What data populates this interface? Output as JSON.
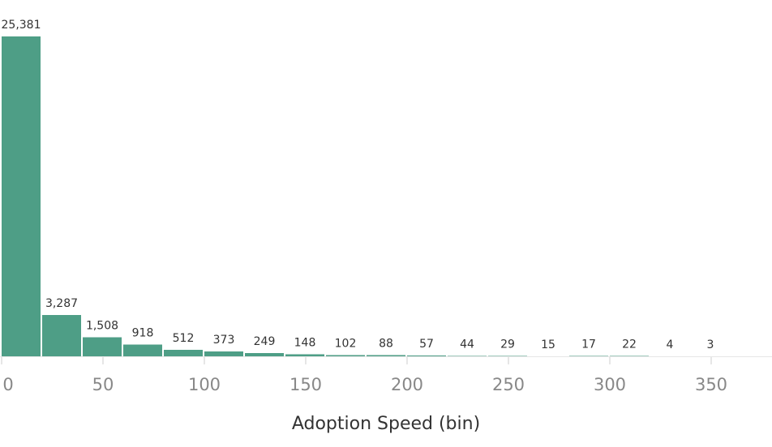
{
  "chart_data": {
    "type": "bar",
    "title": "",
    "xlabel": "Adoption Speed (bin)",
    "ylabel": "",
    "bin_width": 20,
    "x_ticks": [
      0,
      50,
      100,
      150,
      200,
      250,
      300,
      350
    ],
    "x_tick_labels": [
      "0",
      "50",
      "100",
      "150",
      "200",
      "250",
      "300",
      "350"
    ],
    "xlim": [
      0,
      375
    ],
    "ylim": [
      0,
      25381
    ],
    "grid": false,
    "bar_color": "#4e9e86",
    "bins": [
      0,
      20,
      40,
      60,
      80,
      100,
      120,
      140,
      160,
      180,
      200,
      220,
      240,
      260,
      280,
      300,
      320,
      340
    ],
    "values": [
      25381,
      3287,
      1508,
      918,
      512,
      373,
      249,
      148,
      102,
      88,
      57,
      44,
      29,
      15,
      17,
      22,
      4,
      3
    ],
    "value_labels": [
      "25,381",
      "3,287",
      "1,508",
      "918",
      "512",
      "373",
      "249",
      "148",
      "102",
      "88",
      "57",
      "44",
      "29",
      "15",
      "17",
      "22",
      "4",
      "3"
    ]
  }
}
